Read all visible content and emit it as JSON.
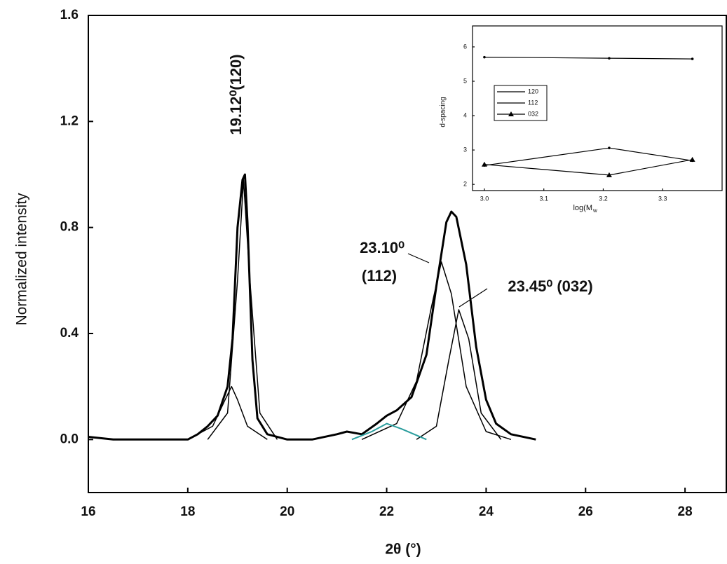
{
  "chart_data": [
    {
      "type": "line",
      "x_label": "2θ (°)",
      "y_label": "Normalized intensity",
      "annotations": [
        "19.12⁰(120)",
        "23.10⁰",
        "(112)",
        "23.45⁰ (032)"
      ],
      "xlim": [
        16,
        28.83
      ],
      "ylim": [
        -0.2,
        1.6
      ],
      "xticks": [
        16,
        18,
        20,
        22,
        24,
        26,
        28
      ],
      "yticks": [
        {
          "value": 0,
          "label": "0.0"
        },
        0.4,
        0.8,
        1.2,
        1.6
      ],
      "series": [
        {
          "color": "#000000",
          "width": 3,
          "x": [
            16.0,
            16.5,
            17.0,
            17.5,
            18.0,
            18.2,
            18.4,
            18.6,
            18.8,
            18.9,
            19.0,
            19.1,
            19.15,
            19.2,
            19.3,
            19.4,
            19.6,
            20.0,
            20.5,
            21.0,
            21.2,
            21.5,
            21.8,
            22.0,
            22.2,
            22.5,
            22.8,
            23.0,
            23.2,
            23.3,
            23.4,
            23.6,
            23.8,
            24.0,
            24.2,
            24.5,
            25.0
          ],
          "values": [
            0.01,
            0.0,
            0.0,
            0.0,
            0.0,
            0.02,
            0.05,
            0.09,
            0.2,
            0.38,
            0.8,
            0.98,
            1.0,
            0.82,
            0.3,
            0.08,
            0.02,
            0.0,
            0.0,
            0.02,
            0.03,
            0.02,
            0.06,
            0.09,
            0.11,
            0.16,
            0.32,
            0.58,
            0.82,
            0.86,
            0.84,
            0.66,
            0.35,
            0.15,
            0.06,
            0.02,
            0.0
          ]
        },
        {
          "color": "#000000",
          "width": 1.5,
          "x": [
            18.4,
            18.8,
            19.0,
            19.12,
            19.25,
            19.45,
            19.8
          ],
          "values": [
            0,
            0.1,
            0.6,
            0.98,
            0.6,
            0.1,
            0
          ]
        },
        {
          "color": "#000000",
          "width": 1.5,
          "x": [
            18.0,
            18.5,
            18.75,
            18.88,
            19.0,
            19.2,
            19.6
          ],
          "values": [
            0,
            0.05,
            0.15,
            0.2,
            0.15,
            0.05,
            0
          ]
        },
        {
          "color": "#000000",
          "width": 1.5,
          "x": [
            21.5,
            22.2,
            22.6,
            22.9,
            23.1,
            23.3,
            23.6,
            24.0,
            24.5
          ],
          "values": [
            0,
            0.06,
            0.22,
            0.5,
            0.67,
            0.55,
            0.2,
            0.03,
            0
          ]
        },
        {
          "color": "#000000",
          "width": 1.5,
          "x": [
            22.6,
            23.0,
            23.25,
            23.45,
            23.65,
            23.9,
            24.3
          ],
          "values": [
            0,
            0.05,
            0.3,
            0.49,
            0.38,
            0.1,
            0
          ]
        },
        {
          "color": "#2a9d9d",
          "width": 2,
          "x": [
            21.3,
            21.7,
            22.0,
            22.3,
            22.8
          ],
          "values": [
            0,
            0.03,
            0.06,
            0.04,
            0
          ]
        }
      ]
    },
    {
      "type": "line",
      "x_label": "log(M",
      "x_label_sub": "w",
      "y_label": "d-spacing",
      "xlim": [
        2.98,
        3.4
      ],
      "ylim": [
        1.82,
        6.61
      ],
      "xticks": [
        {
          "value": 3.0,
          "label": "3.0"
        },
        3.1,
        3.2,
        3.3
      ],
      "yticks": [
        2,
        3,
        4,
        5,
        6
      ],
      "series": [
        {
          "name": "120",
          "color": "#000000",
          "x": [
            3.0,
            3.21,
            3.35
          ],
          "values": [
            5.7,
            5.67,
            5.65
          ]
        },
        {
          "name": "112",
          "color": "#000000",
          "x": [
            3.0,
            3.21,
            3.35
          ],
          "values": [
            2.55,
            3.06,
            2.69
          ]
        },
        {
          "name": "032",
          "color": "#000000",
          "marker": "triangle",
          "x": [
            3.0,
            3.21,
            3.35
          ],
          "values": [
            2.58,
            2.27,
            2.72
          ]
        }
      ]
    }
  ]
}
